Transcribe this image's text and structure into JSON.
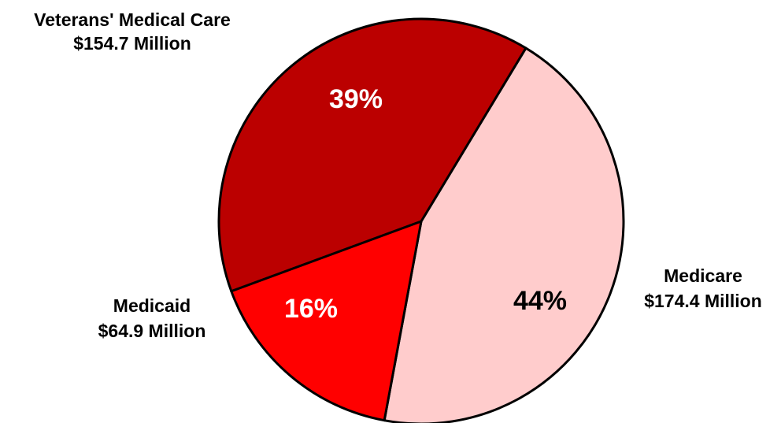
{
  "chart_data": {
    "type": "pie",
    "slices": [
      {
        "name": "Medicare",
        "amount_label": "$174.4 Million",
        "amount": 174.4,
        "percent_label": "44%",
        "color": "#FFCCCC",
        "percent_color": "#000000"
      },
      {
        "name": "Medicaid",
        "amount_label": "$64.9 Million",
        "amount": 64.9,
        "percent_label": "16%",
        "color": "#FF0000",
        "percent_color": "#FFFFFF"
      },
      {
        "name": "Veterans' Medical Care",
        "amount_label": "$154.7 Million",
        "amount": 154.7,
        "percent_label": "39%",
        "color": "#BB0000",
        "percent_color": "#FFFFFF"
      }
    ],
    "outline_color": "#000000"
  }
}
